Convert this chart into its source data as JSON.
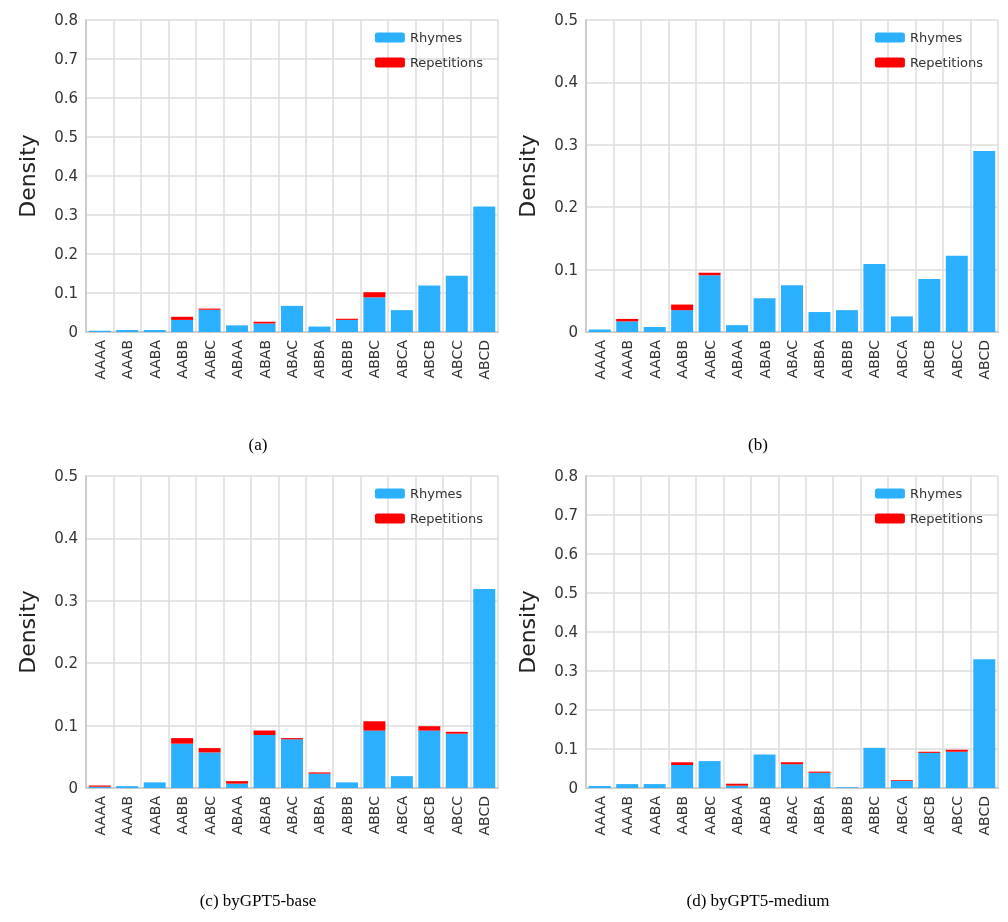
{
  "chart_data": [
    {
      "type": "bar",
      "title": "(a)",
      "ylabel": "Density",
      "categories": [
        "AAAA",
        "AAAB",
        "AABA",
        "AABB",
        "AABC",
        "ABAA",
        "ABAB",
        "ABAC",
        "ABBA",
        "ABBB",
        "ABBC",
        "ABCA",
        "ABCB",
        "ABCC",
        "ABCD"
      ],
      "stacked": true,
      "series": [
        {
          "name": "Rhymes",
          "color": "#2bb0ff",
          "values": [
            0.003,
            0.005,
            0.005,
            0.031,
            0.057,
            0.017,
            0.022,
            0.067,
            0.014,
            0.031,
            0.089,
            0.056,
            0.119,
            0.144,
            0.322
          ]
        },
        {
          "name": "Repetitions",
          "color": "#ff0000",
          "values": [
            0,
            0,
            0,
            0.008,
            0.003,
            0,
            0.004,
            0,
            0,
            0.003,
            0.013,
            0,
            0,
            0,
            0
          ]
        }
      ],
      "ylim": [
        0,
        0.8
      ],
      "yticks": [
        0,
        0.1,
        0.2,
        0.3,
        0.4,
        0.5,
        0.6,
        0.7,
        0.8
      ],
      "grid": true,
      "legend": "top right"
    },
    {
      "type": "bar",
      "title": "(b)",
      "ylabel": "Density",
      "categories": [
        "AAAA",
        "AAAB",
        "AABA",
        "AABB",
        "AABC",
        "ABAA",
        "ABAB",
        "ABAC",
        "ABBA",
        "ABBB",
        "ABBC",
        "ABCA",
        "ABCB",
        "ABCC",
        "ABCD"
      ],
      "stacked": true,
      "series": [
        {
          "name": "Rhymes",
          "color": "#2bb0ff",
          "values": [
            0.004,
            0.017,
            0.008,
            0.035,
            0.091,
            0.011,
            0.054,
            0.075,
            0.032,
            0.035,
            0.109,
            0.025,
            0.085,
            0.122,
            0.29
          ]
        },
        {
          "name": "Repetitions",
          "color": "#ff0000",
          "values": [
            0,
            0.004,
            0,
            0.009,
            0.004,
            0,
            0,
            0,
            0,
            0,
            0,
            0,
            0,
            0,
            0
          ]
        }
      ],
      "ylim": [
        0,
        0.5
      ],
      "yticks": [
        0,
        0.1,
        0.2,
        0.3,
        0.4,
        0.5
      ],
      "grid": true,
      "legend": "top right"
    },
    {
      "type": "bar",
      "title": "(c) byGPT5-base",
      "ylabel": "Density",
      "categories": [
        "AAAA",
        "AAAB",
        "AABA",
        "AABB",
        "AABC",
        "ABAA",
        "ABAB",
        "ABAC",
        "ABBA",
        "ABBB",
        "ABBC",
        "ABCA",
        "ABCB",
        "ABCC",
        "ABCD"
      ],
      "stacked": true,
      "series": [
        {
          "name": "Rhymes",
          "color": "#2bb0ff",
          "values": [
            0.002,
            0.003,
            0.009,
            0.071,
            0.057,
            0.007,
            0.085,
            0.078,
            0.023,
            0.009,
            0.092,
            0.019,
            0.092,
            0.087,
            0.319
          ]
        },
        {
          "name": "Repetitions",
          "color": "#ff0000",
          "values": [
            0.002,
            0,
            0,
            0.009,
            0.007,
            0.004,
            0.007,
            0.002,
            0.002,
            0,
            0.015,
            0,
            0.007,
            0.003,
            0
          ]
        }
      ],
      "ylim": [
        0,
        0.5
      ],
      "yticks": [
        0,
        0.1,
        0.2,
        0.3,
        0.4,
        0.5
      ],
      "grid": true,
      "legend": "top right"
    },
    {
      "type": "bar",
      "title": "(d) byGPT5-medium",
      "ylabel": "Density",
      "categories": [
        "AAAA",
        "AAAB",
        "AABA",
        "AABB",
        "AABC",
        "ABAA",
        "ABAB",
        "ABAC",
        "ABBA",
        "ABBB",
        "ABBC",
        "ABCA",
        "ABCB",
        "ABCC",
        "ABCD"
      ],
      "stacked": true,
      "series": [
        {
          "name": "Rhymes",
          "color": "#2bb0ff",
          "values": [
            0.005,
            0.01,
            0.01,
            0.059,
            0.069,
            0.006,
            0.086,
            0.061,
            0.039,
            0.002,
            0.103,
            0.018,
            0.09,
            0.093,
            0.33
          ]
        },
        {
          "name": "Repetitions",
          "color": "#ff0000",
          "values": [
            0,
            0,
            0,
            0.007,
            0,
            0.005,
            0,
            0.005,
            0.003,
            0,
            0,
            0.002,
            0.003,
            0.005,
            0
          ]
        }
      ],
      "ylim": [
        0,
        0.8
      ],
      "yticks": [
        0,
        0.1,
        0.2,
        0.3,
        0.4,
        0.5,
        0.6,
        0.7,
        0.8
      ],
      "grid": true,
      "legend": "top right"
    }
  ]
}
